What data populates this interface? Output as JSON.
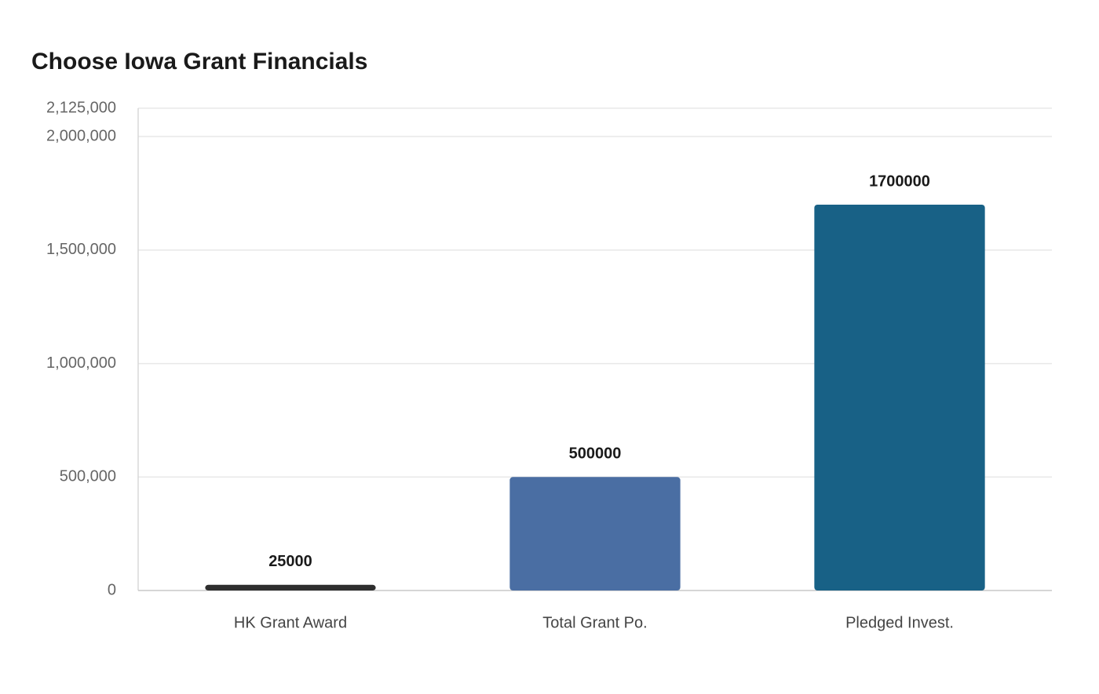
{
  "chart_data": {
    "type": "bar",
    "title": "Choose Iowa Grant Financials",
    "categories": [
      "HK Grant Award",
      "Total Grant Po.",
      "Pledged Invest."
    ],
    "values": [
      25000,
      500000,
      1700000
    ],
    "colors": [
      "#2e2e2e",
      "#4a6ea3",
      "#186186"
    ],
    "ylim": [
      0,
      2125000
    ],
    "yticks": [
      0,
      {
        "value": 500000,
        "label": "500,000"
      },
      {
        "value": 1000000,
        "label": "1,000,000"
      },
      {
        "value": 1500000,
        "label": "1,500,000"
      },
      {
        "value": 2000000,
        "label": "2,000,000"
      },
      {
        "value": 2125000,
        "label": "2,125,000"
      }
    ],
    "grid": true
  }
}
